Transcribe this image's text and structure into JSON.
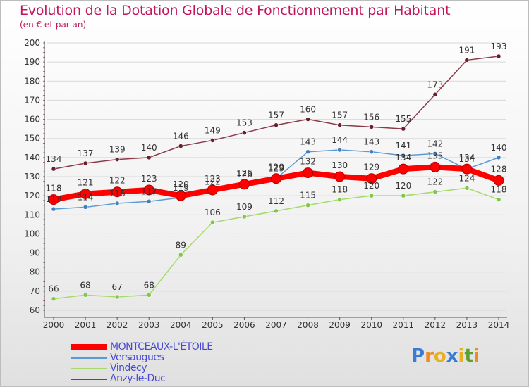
{
  "title": "Evolution de la Dotation Globale de Fonctionnement par Habitant",
  "subtitle": "(en € et par an)",
  "logo": {
    "letters": [
      "P",
      "r",
      "o",
      "x",
      "i",
      "t",
      "i"
    ],
    "colors": [
      "#3a7bd5",
      "#f08a24",
      "#e8b020",
      "#3a7bd5",
      "#e8b020",
      "#5aa02c",
      "#f08a24"
    ]
  },
  "chart_data": {
    "type": "line",
    "title": "Evolution de la Dotation Globale de Fonctionnement par Habitant",
    "subtitle": "(en € et par an)",
    "x": [
      "2000",
      "2001",
      "2002",
      "2003",
      "2004",
      "2005",
      "2006",
      "2007",
      "2008",
      "2009",
      "2010",
      "2011",
      "2012",
      "2013",
      "2014"
    ],
    "ylim": [
      60,
      200
    ],
    "yticks": [
      60,
      70,
      80,
      90,
      100,
      110,
      120,
      130,
      140,
      150,
      160,
      170,
      180,
      190,
      200
    ],
    "grid": "horizontal",
    "legend_position": "bottom-left",
    "series": [
      {
        "name": "MONTCEAUX-L'ÉTOILE",
        "color": "#ff0000",
        "emphasis": true,
        "values": [
          118,
          121,
          122,
          123,
          120,
          123,
          126,
          129,
          132,
          130,
          129,
          134,
          135,
          134,
          128
        ]
      },
      {
        "name": "Versaugues",
        "color": "#5b9bd5",
        "marker": "#3f7fbf",
        "values": [
          113,
          114,
          116,
          117,
          119,
          122,
          126,
          129,
          143,
          144,
          143,
          141,
          142,
          134,
          140
        ]
      },
      {
        "name": "Vindecy",
        "color": "#a6d96a",
        "marker": "#7ec845",
        "values": [
          66,
          68,
          67,
          68,
          89,
          106,
          109,
          112,
          115,
          118,
          120,
          120,
          122,
          124,
          118
        ]
      },
      {
        "name": "Anzy-le-Duc",
        "color": "#8b3a4a",
        "marker": "#6b1e2e",
        "values": [
          134,
          137,
          139,
          140,
          146,
          149,
          153,
          157,
          160,
          157,
          156,
          155,
          173,
          191,
          193
        ]
      }
    ]
  }
}
